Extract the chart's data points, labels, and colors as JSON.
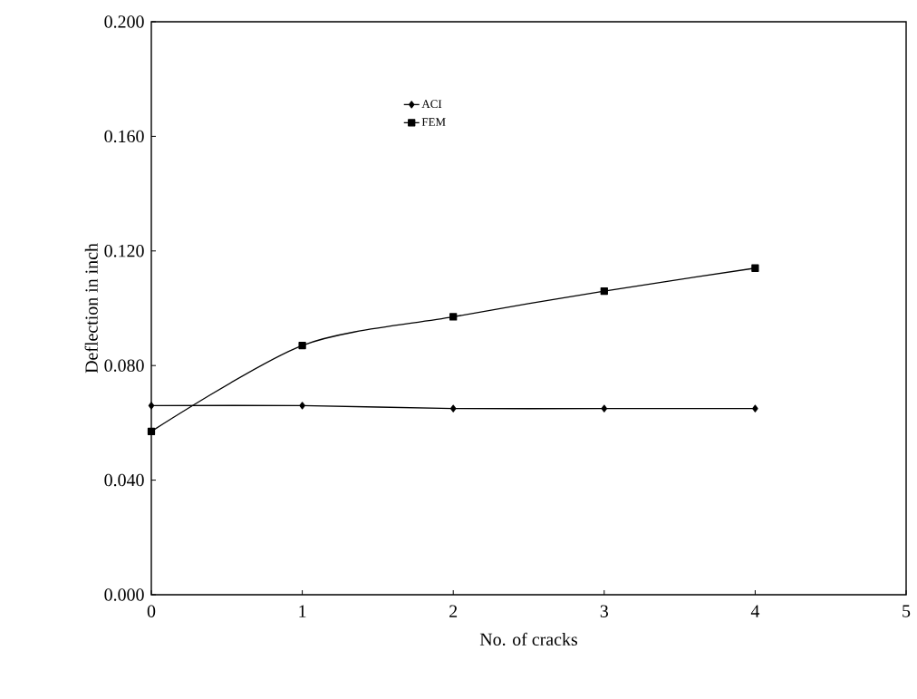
{
  "chart_data": {
    "type": "line",
    "xlabel": "No. of cracks",
    "ylabel": "Deflection in inch",
    "x": [
      0,
      1,
      2,
      3,
      4
    ],
    "series": [
      {
        "name": "ACI",
        "color": "#000000",
        "marker": "diamond",
        "values": [
          0.066,
          0.066,
          0.065,
          0.065,
          0.065
        ]
      },
      {
        "name": "FEM",
        "color": "#000000",
        "marker": "square",
        "values": [
          0.057,
          0.087,
          0.097,
          0.106,
          0.114
        ]
      }
    ],
    "xlim": [
      0,
      5
    ],
    "xticks": [
      0,
      1,
      2,
      3,
      4,
      5
    ],
    "ylim": [
      0,
      0.2
    ],
    "yticks": [
      {
        "value": 0,
        "label": "0.000"
      },
      {
        "value": 0.04,
        "label": "0.040"
      },
      {
        "value": 0.08,
        "label": "0.080"
      },
      {
        "value": 0.12,
        "label": "0.120"
      },
      {
        "value": 0.16,
        "label": "0.160"
      },
      {
        "value": 0.2,
        "label": "0.200"
      }
    ],
    "legend": "top",
    "line_style": "solid",
    "grid": false
  }
}
